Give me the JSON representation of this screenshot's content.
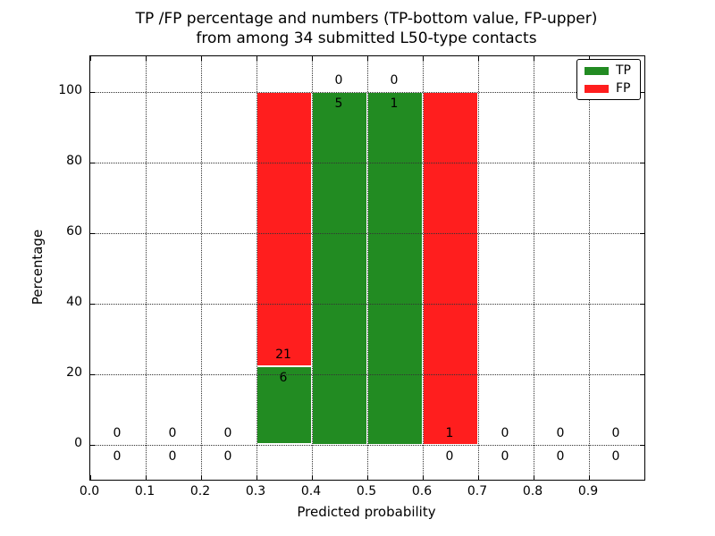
{
  "chart_data": {
    "type": "bar",
    "stacked": true,
    "title_line1": "TP /FP percentage and numbers (TP-bottom value, FP-upper)",
    "title_line2": "from among 34 submitted L50-type contacts",
    "xlabel": "Predicted probability",
    "ylabel": "Percentage",
    "xlim": [
      0.0,
      1.0
    ],
    "ylim": [
      -10,
      110
    ],
    "x_tick_values": [
      0.0,
      0.1,
      0.2,
      0.3,
      0.4,
      0.5,
      0.6,
      0.7,
      0.8,
      0.9
    ],
    "x_tick_labels": [
      "0.0",
      "0.1",
      "0.2",
      "0.3",
      "0.4",
      "0.5",
      "0.6",
      "0.7",
      "0.8",
      "0.9"
    ],
    "y_tick_values": [
      0,
      20,
      40,
      60,
      80,
      100
    ],
    "y_tick_labels": [
      "0",
      "20",
      "40",
      "60",
      "80",
      "100"
    ],
    "grid": true,
    "total_contacts": 34,
    "bins": [
      {
        "range": [
          0.0,
          0.1
        ],
        "tp_count": 0,
        "fp_count": 0,
        "tp_pct": 0,
        "fp_pct": 0
      },
      {
        "range": [
          0.1,
          0.2
        ],
        "tp_count": 0,
        "fp_count": 0,
        "tp_pct": 0,
        "fp_pct": 0
      },
      {
        "range": [
          0.2,
          0.3
        ],
        "tp_count": 0,
        "fp_count": 0,
        "tp_pct": 0,
        "fp_pct": 0
      },
      {
        "range": [
          0.3,
          0.4
        ],
        "tp_count": 6,
        "fp_count": 21,
        "tp_pct": 22.2,
        "fp_pct": 77.8
      },
      {
        "range": [
          0.4,
          0.5
        ],
        "tp_count": 5,
        "fp_count": 0,
        "tp_pct": 100,
        "fp_pct": 0
      },
      {
        "range": [
          0.5,
          0.6
        ],
        "tp_count": 1,
        "fp_count": 0,
        "tp_pct": 100,
        "fp_pct": 0
      },
      {
        "range": [
          0.6,
          0.7
        ],
        "tp_count": 0,
        "fp_count": 1,
        "tp_pct": 0,
        "fp_pct": 100
      },
      {
        "range": [
          0.7,
          0.8
        ],
        "tp_count": 0,
        "fp_count": 0,
        "tp_pct": 0,
        "fp_pct": 0
      },
      {
        "range": [
          0.8,
          0.9
        ],
        "tp_count": 0,
        "fp_count": 0,
        "tp_pct": 0,
        "fp_pct": 0
      },
      {
        "range": [
          0.9,
          1.0
        ],
        "tp_count": 0,
        "fp_count": 0,
        "tp_pct": 0,
        "fp_pct": 0
      }
    ],
    "legend": [
      {
        "label": "TP",
        "color": "#228B22"
      },
      {
        "label": "FP",
        "color": "#FF1E1E"
      }
    ],
    "colors": {
      "tp": "#228B22",
      "fp": "#FF1E1E",
      "grid": "#333333",
      "text": "#000000"
    }
  }
}
